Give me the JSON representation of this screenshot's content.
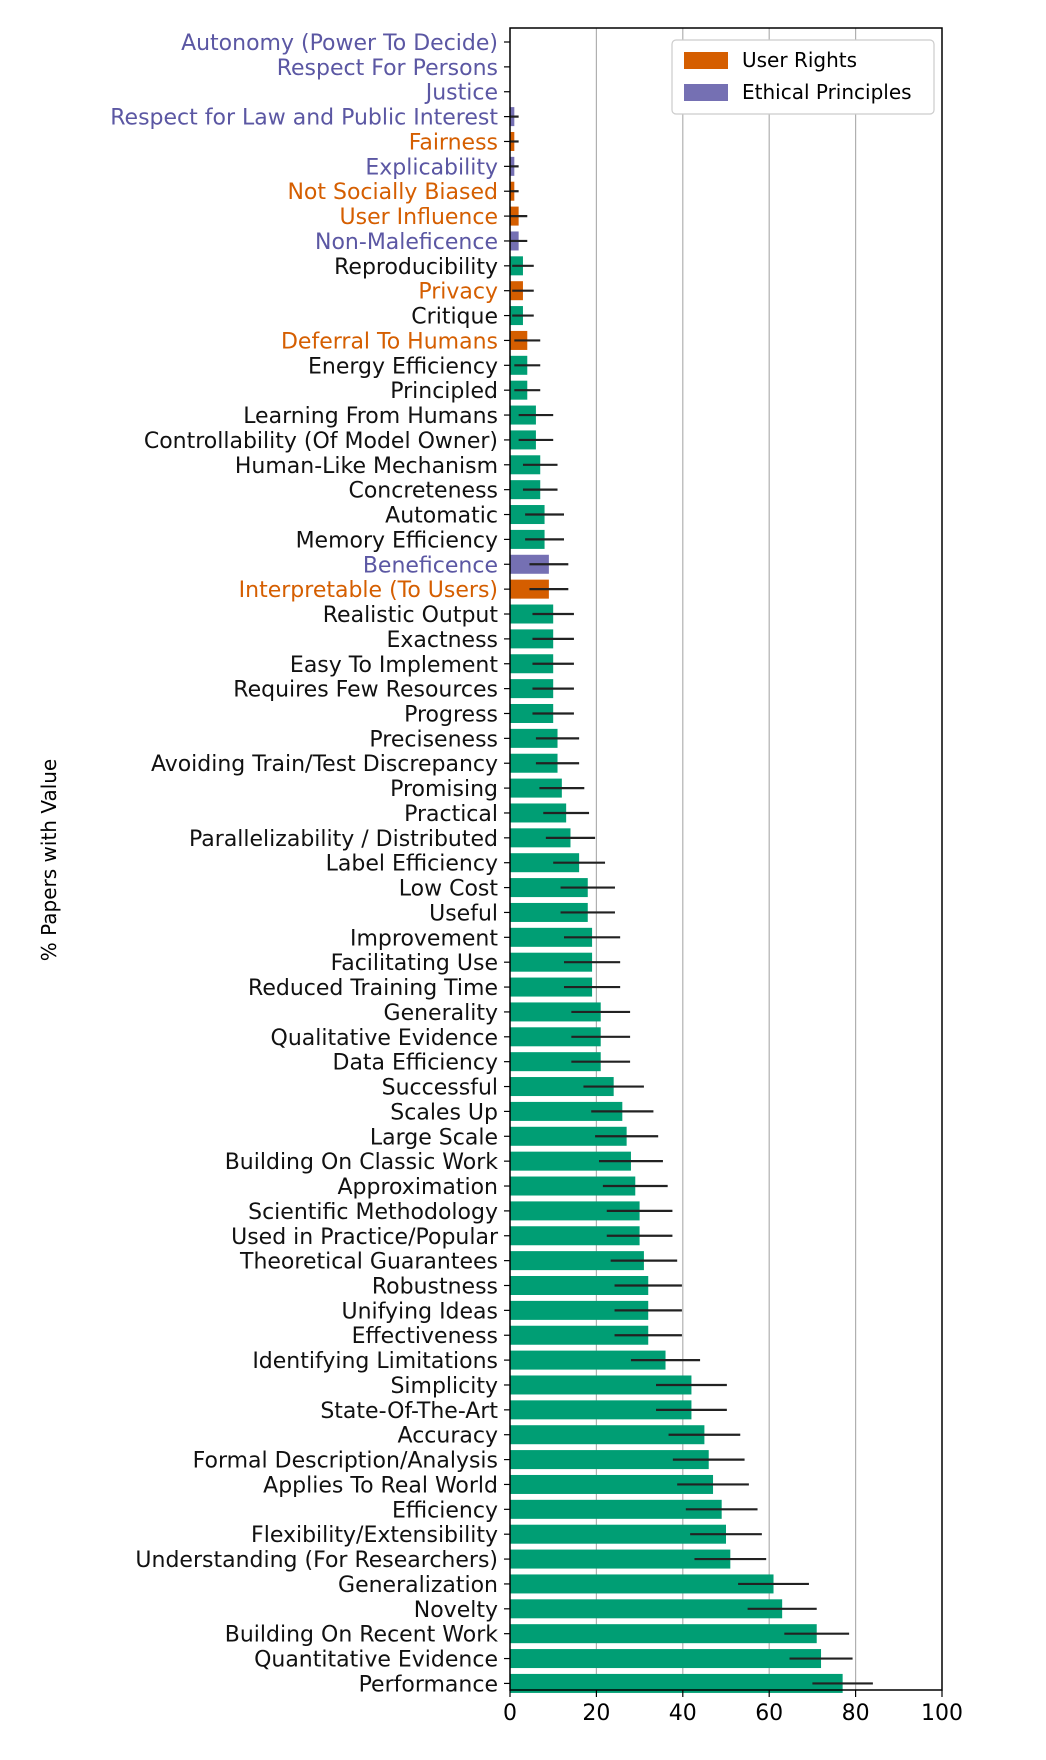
{
  "chart_data": {
    "type": "bar",
    "orientation": "horizontal",
    "ylabel": "% Papers with Value",
    "xlabel": "",
    "xlim": [
      0,
      100
    ],
    "xticks": [
      0,
      20,
      40,
      60,
      80,
      100
    ],
    "grid": "vertical",
    "legend_position": "top-right",
    "colors": {
      "Values": "#009e74",
      "User Rights": "#d55e00",
      "Ethical Principles": "#7570b3",
      "error_bar": "#222222"
    },
    "label_colors": {
      "Values": "#111111",
      "User Rights": "#d55e00",
      "Ethical Principles": "#5b57a3"
    },
    "legend": [
      {
        "label": "User Rights",
        "group": "User Rights"
      },
      {
        "label": "Ethical Principles",
        "group": "Ethical Principles"
      }
    ],
    "bars": [
      {
        "label": "Autonomy (Power To Decide)",
        "value": 0,
        "err": 0,
        "group": "Ethical Principles"
      },
      {
        "label": "Respect For Persons",
        "value": 0,
        "err": 0,
        "group": "Ethical Principles"
      },
      {
        "label": "Justice",
        "value": 0,
        "err": 0,
        "group": "Ethical Principles"
      },
      {
        "label": "Respect for Law and Public Interest",
        "value": 1,
        "err": 1,
        "group": "Ethical Principles"
      },
      {
        "label": "Fairness",
        "value": 1,
        "err": 1,
        "group": "User Rights"
      },
      {
        "label": "Explicability",
        "value": 1,
        "err": 1,
        "group": "Ethical Principles"
      },
      {
        "label": "Not Socially Biased",
        "value": 1,
        "err": 1,
        "group": "User Rights"
      },
      {
        "label": "User Influence",
        "value": 2,
        "err": 2,
        "group": "User Rights"
      },
      {
        "label": "Non-Maleficence",
        "value": 2,
        "err": 2,
        "group": "Ethical Principles"
      },
      {
        "label": "Reproducibility",
        "value": 3,
        "err": 2.5,
        "group": "Values"
      },
      {
        "label": "Privacy",
        "value": 3,
        "err": 2.5,
        "group": "User Rights"
      },
      {
        "label": "Critique",
        "value": 3,
        "err": 2.5,
        "group": "Values"
      },
      {
        "label": "Deferral To Humans",
        "value": 4,
        "err": 3,
        "group": "User Rights"
      },
      {
        "label": "Energy Efficiency",
        "value": 4,
        "err": 3,
        "group": "Values"
      },
      {
        "label": "Principled",
        "value": 4,
        "err": 3,
        "group": "Values"
      },
      {
        "label": "Learning From Humans",
        "value": 6,
        "err": 4,
        "group": "Values"
      },
      {
        "label": "Controllability (Of Model Owner)",
        "value": 6,
        "err": 4,
        "group": "Values"
      },
      {
        "label": "Human-Like Mechanism",
        "value": 7,
        "err": 4,
        "group": "Values"
      },
      {
        "label": "Concreteness",
        "value": 7,
        "err": 4,
        "group": "Values"
      },
      {
        "label": "Automatic",
        "value": 8,
        "err": 4.5,
        "group": "Values"
      },
      {
        "label": "Memory Efficiency",
        "value": 8,
        "err": 4.5,
        "group": "Values"
      },
      {
        "label": "Beneficence",
        "value": 9,
        "err": 4.5,
        "group": "Ethical Principles"
      },
      {
        "label": "Interpretable (To Users)",
        "value": 9,
        "err": 4.5,
        "group": "User Rights"
      },
      {
        "label": "Realistic Output",
        "value": 10,
        "err": 4.8,
        "group": "Values"
      },
      {
        "label": "Exactness",
        "value": 10,
        "err": 4.8,
        "group": "Values"
      },
      {
        "label": "Easy To Implement",
        "value": 10,
        "err": 4.8,
        "group": "Values"
      },
      {
        "label": "Requires Few Resources",
        "value": 10,
        "err": 4.8,
        "group": "Values"
      },
      {
        "label": "Progress",
        "value": 10,
        "err": 4.8,
        "group": "Values"
      },
      {
        "label": "Preciseness",
        "value": 11,
        "err": 5,
        "group": "Values"
      },
      {
        "label": "Avoiding Train/Test Discrepancy",
        "value": 11,
        "err": 5,
        "group": "Values"
      },
      {
        "label": "Promising",
        "value": 12,
        "err": 5.2,
        "group": "Values"
      },
      {
        "label": "Practical",
        "value": 13,
        "err": 5.3,
        "group": "Values"
      },
      {
        "label": "Parallelizability / Distributed",
        "value": 14,
        "err": 5.7,
        "group": "Values"
      },
      {
        "label": "Label Efficiency",
        "value": 16,
        "err": 6,
        "group": "Values"
      },
      {
        "label": "Low Cost",
        "value": 18,
        "err": 6.3,
        "group": "Values"
      },
      {
        "label": "Useful",
        "value": 18,
        "err": 6.3,
        "group": "Values"
      },
      {
        "label": "Improvement",
        "value": 19,
        "err": 6.5,
        "group": "Values"
      },
      {
        "label": "Facilitating Use",
        "value": 19,
        "err": 6.5,
        "group": "Values"
      },
      {
        "label": "Reduced Training Time",
        "value": 19,
        "err": 6.5,
        "group": "Values"
      },
      {
        "label": "Generality",
        "value": 21,
        "err": 6.8,
        "group": "Values"
      },
      {
        "label": "Qualitative Evidence",
        "value": 21,
        "err": 6.8,
        "group": "Values"
      },
      {
        "label": "Data Efficiency",
        "value": 21,
        "err": 6.8,
        "group": "Values"
      },
      {
        "label": "Successful",
        "value": 24,
        "err": 7,
        "group": "Values"
      },
      {
        "label": "Scales Up",
        "value": 26,
        "err": 7.2,
        "group": "Values"
      },
      {
        "label": "Large Scale",
        "value": 27,
        "err": 7.3,
        "group": "Values"
      },
      {
        "label": "Building On Classic Work",
        "value": 28,
        "err": 7.4,
        "group": "Values"
      },
      {
        "label": "Approximation",
        "value": 29,
        "err": 7.5,
        "group": "Values"
      },
      {
        "label": "Scientific Methodology",
        "value": 30,
        "err": 7.6,
        "group": "Values"
      },
      {
        "label": "Used in Practice/Popular",
        "value": 30,
        "err": 7.6,
        "group": "Values"
      },
      {
        "label": "Theoretical Guarantees",
        "value": 31,
        "err": 7.7,
        "group": "Values"
      },
      {
        "label": "Robustness",
        "value": 32,
        "err": 7.8,
        "group": "Values"
      },
      {
        "label": "Unifying Ideas",
        "value": 32,
        "err": 7.8,
        "group": "Values"
      },
      {
        "label": "Effectiveness",
        "value": 32,
        "err": 7.8,
        "group": "Values"
      },
      {
        "label": "Identifying Limitations",
        "value": 36,
        "err": 8,
        "group": "Values"
      },
      {
        "label": "Simplicity",
        "value": 42,
        "err": 8.2,
        "group": "Values"
      },
      {
        "label": "State-Of-The-Art",
        "value": 42,
        "err": 8.2,
        "group": "Values"
      },
      {
        "label": "Accuracy",
        "value": 45,
        "err": 8.3,
        "group": "Values"
      },
      {
        "label": "Formal Description/Analysis",
        "value": 46,
        "err": 8.3,
        "group": "Values"
      },
      {
        "label": "Applies To Real World",
        "value": 47,
        "err": 8.3,
        "group": "Values"
      },
      {
        "label": "Efficiency",
        "value": 49,
        "err": 8.3,
        "group": "Values"
      },
      {
        "label": "Flexibility/Extensibility",
        "value": 50,
        "err": 8.3,
        "group": "Values"
      },
      {
        "label": "Understanding (For Researchers)",
        "value": 51,
        "err": 8.3,
        "group": "Values"
      },
      {
        "label": "Generalization",
        "value": 61,
        "err": 8.2,
        "group": "Values"
      },
      {
        "label": "Novelty",
        "value": 63,
        "err": 8,
        "group": "Values"
      },
      {
        "label": "Building On Recent Work",
        "value": 71,
        "err": 7.5,
        "group": "Values"
      },
      {
        "label": "Quantitative Evidence",
        "value": 72,
        "err": 7.3,
        "group": "Values"
      },
      {
        "label": "Performance",
        "value": 77,
        "err": 7,
        "group": "Values"
      }
    ]
  }
}
